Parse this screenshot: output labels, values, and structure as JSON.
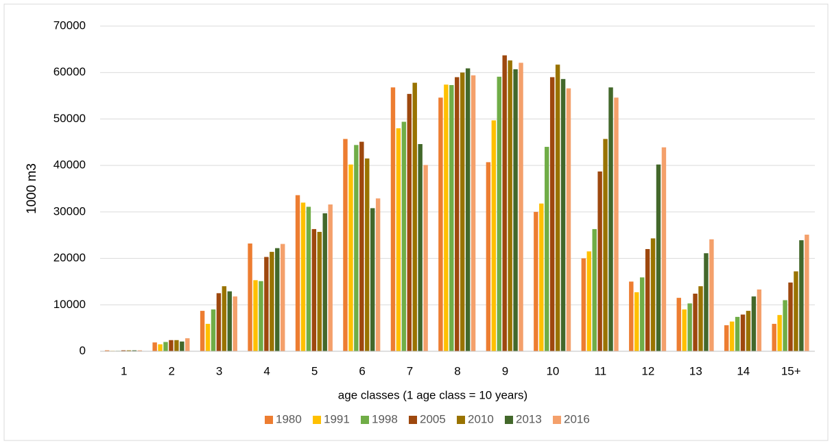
{
  "chart_data": {
    "type": "bar",
    "x_label": "age classes (1 age class = 10 years)",
    "y_label": "1000 m3",
    "categories": [
      "1",
      "2",
      "3",
      "4",
      "5",
      "6",
      "7",
      "8",
      "9",
      "10",
      "11",
      "12",
      "13",
      "14",
      "15+"
    ],
    "series": [
      {
        "name": "1980",
        "color": "#ED7D31",
        "values": [
          200,
          1900,
          8700,
          23200,
          33600,
          45700,
          56800,
          54600,
          40700,
          30000,
          20000,
          15000,
          11500,
          5600,
          5900
        ]
      },
      {
        "name": "1991",
        "color": "#FFC000",
        "values": [
          100,
          1500,
          5900,
          15300,
          32000,
          40200,
          48000,
          57400,
          49700,
          31800,
          21500,
          12700,
          9000,
          6400,
          7800
        ]
      },
      {
        "name": "1998",
        "color": "#70AD47",
        "values": [
          100,
          2000,
          9000,
          15100,
          31100,
          44400,
          49400,
          57300,
          59100,
          44000,
          26300,
          15900,
          10300,
          7400,
          11000
        ]
      },
      {
        "name": "2005",
        "color": "#9E480E",
        "values": [
          200,
          2400,
          12500,
          20300,
          26300,
          45100,
          55400,
          59000,
          63700,
          59000,
          38700,
          22000,
          12400,
          7900,
          14800
        ]
      },
      {
        "name": "2010",
        "color": "#997300",
        "values": [
          200,
          2400,
          14000,
          21400,
          25700,
          41500,
          57800,
          60000,
          62600,
          61700,
          45700,
          24300,
          14000,
          8700,
          17200
        ]
      },
      {
        "name": "2013",
        "color": "#43682B",
        "values": [
          200,
          2100,
          12900,
          22200,
          29700,
          30800,
          44600,
          60900,
          60700,
          58600,
          56800,
          40200,
          21100,
          11800,
          23900
        ]
      },
      {
        "name": "2016",
        "color": "#F4A06B",
        "values": [
          200,
          2800,
          11800,
          23100,
          31600,
          32900,
          40100,
          59400,
          62100,
          56600,
          54600,
          43900,
          24100,
          13300,
          25100
        ]
      }
    ],
    "ylim": [
      0,
      70000
    ],
    "yticks": [
      0,
      10000,
      20000,
      30000,
      40000,
      50000,
      60000,
      70000
    ],
    "grid": true,
    "legend": "bottom"
  }
}
